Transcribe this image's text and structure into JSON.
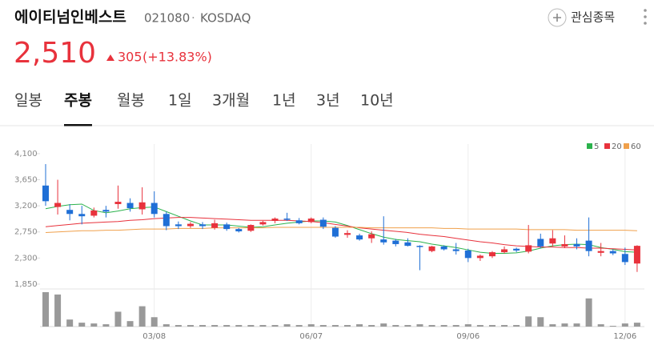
{
  "header": {
    "name": "에이티넘인베스트",
    "code": "021080",
    "separator": "·",
    "market": "KOSDAQ",
    "price": "2,510",
    "change": "305",
    "change_pct": "(+13.83%)",
    "watch_button": "관심종목"
  },
  "tabs": {
    "items": [
      "일봉",
      "주봉",
      "월봉",
      "1일",
      "3개월",
      "1년",
      "3년",
      "10년"
    ],
    "selected": 1
  },
  "chart_data": {
    "type": "candlestick",
    "categories": [
      null,
      null,
      null,
      null,
      null,
      null,
      null,
      null,
      null,
      "03/08",
      null,
      null,
      null,
      null,
      null,
      null,
      null,
      null,
      null,
      null,
      null,
      null,
      "06/07",
      null,
      null,
      null,
      null,
      null,
      null,
      null,
      null,
      null,
      null,
      null,
      null,
      "09/06",
      null,
      null,
      null,
      null,
      null,
      null,
      null,
      null,
      null,
      null,
      null,
      null,
      "12/06",
      null
    ],
    "open": [
      3550,
      3180,
      3130,
      3060,
      3030,
      3130,
      3230,
      3250,
      3140,
      3250,
      3060,
      2880,
      2850,
      2880,
      2820,
      2880,
      2800,
      2770,
      2880,
      2940,
      2980,
      2950,
      2920,
      2960,
      2820,
      2700,
      2690,
      2640,
      2620,
      2600,
      2570,
      2510,
      2420,
      2500,
      2450,
      2430,
      2300,
      2330,
      2400,
      2460,
      2410,
      2630,
      2550,
      2500,
      2540,
      2600,
      2390,
      2420,
      2370,
      2205
    ],
    "high": [
      3920,
      3650,
      3230,
      3200,
      3170,
      3200,
      3550,
      3330,
      3520,
      3450,
      3100,
      2930,
      2920,
      2920,
      2960,
      2910,
      2820,
      2880,
      2940,
      3000,
      3080,
      2990,
      3000,
      3000,
      2850,
      2780,
      2720,
      2760,
      3020,
      2630,
      2640,
      2520,
      2510,
      2520,
      2560,
      2460,
      2360,
      2420,
      2500,
      2480,
      2870,
      2720,
      2780,
      2690,
      2640,
      3000,
      2560,
      2450,
      2480,
      2520
    ],
    "low": [
      3200,
      3050,
      2950,
      2880,
      3000,
      3000,
      3150,
      3100,
      3050,
      3000,
      2780,
      2800,
      2820,
      2800,
      2790,
      2770,
      2740,
      2750,
      2860,
      2900,
      2940,
      2880,
      2900,
      2800,
      2650,
      2650,
      2600,
      2560,
      2530,
      2500,
      2500,
      2090,
      2400,
      2430,
      2360,
      2230,
      2250,
      2300,
      2380,
      2400,
      2380,
      2470,
      2500,
      2470,
      2450,
      2330,
      2330,
      2350,
      2180,
      2060
    ],
    "close": [
      3280,
      3250,
      3060,
      3020,
      3120,
      3100,
      3270,
      3160,
      3260,
      3060,
      2850,
      2850,
      2890,
      2850,
      2900,
      2800,
      2760,
      2870,
      2920,
      2980,
      2960,
      2900,
      2980,
      2840,
      2670,
      2730,
      2620,
      2710,
      2570,
      2540,
      2510,
      2490,
      2500,
      2450,
      2420,
      2300,
      2340,
      2400,
      2450,
      2430,
      2520,
      2500,
      2640,
      2540,
      2500,
      2420,
      2420,
      2380,
      2230,
      2510
    ],
    "volume": [
      44,
      41,
      9,
      5,
      4,
      3,
      19,
      7,
      26,
      12,
      3,
      2,
      2,
      2,
      2,
      2,
      2,
      2,
      2,
      2,
      3,
      2,
      3,
      2,
      2,
      2,
      3,
      2,
      4,
      2,
      2,
      3,
      2,
      2,
      2,
      3,
      2,
      2,
      2,
      2,
      13,
      12,
      3,
      4,
      4,
      36,
      3,
      1,
      4,
      5
    ],
    "volume_ylim": [
      0,
      45
    ],
    "up_color": "#e8323c",
    "down_color": "#1f6fd6",
    "volume_color": "#999999",
    "series": [
      {
        "name": "5",
        "color": "#2bb24c",
        "values": [
          3150,
          3190,
          3220,
          3230,
          3120,
          3080,
          3110,
          3150,
          3170,
          3180,
          3100,
          3020,
          2940,
          2870,
          2870,
          2870,
          2850,
          2830,
          2840,
          2870,
          2900,
          2920,
          2940,
          2940,
          2920,
          2860,
          2790,
          2720,
          2660,
          2620,
          2600,
          2580,
          2540,
          2510,
          2480,
          2440,
          2400,
          2380,
          2380,
          2390,
          2420,
          2470,
          2510,
          2530,
          2540,
          2530,
          2480,
          2450,
          2410,
          2400
        ]
      },
      {
        "name": "20",
        "color": "#e8323c",
        "values": [
          2840,
          2860,
          2880,
          2900,
          2910,
          2920,
          2930,
          2950,
          2960,
          2980,
          2990,
          3000,
          3000,
          2990,
          2980,
          2970,
          2960,
          2950,
          2950,
          2950,
          2950,
          2940,
          2930,
          2910,
          2880,
          2850,
          2820,
          2800,
          2780,
          2760,
          2740,
          2710,
          2690,
          2670,
          2640,
          2610,
          2580,
          2560,
          2530,
          2510,
          2500,
          2490,
          2490,
          2480,
          2480,
          2470,
          2470,
          2460,
          2450,
          2440
        ]
      },
      {
        "name": "60",
        "color": "#f0a04b",
        "values": [
          2740,
          2750,
          2760,
          2770,
          2770,
          2780,
          2780,
          2790,
          2800,
          2800,
          2800,
          2810,
          2810,
          2810,
          2820,
          2820,
          2820,
          2820,
          2820,
          2830,
          2830,
          2830,
          2830,
          2830,
          2830,
          2830,
          2830,
          2820,
          2820,
          2820,
          2820,
          2820,
          2820,
          2810,
          2810,
          2800,
          2800,
          2800,
          2800,
          2800,
          2790,
          2790,
          2790,
          2790,
          2780,
          2780,
          2780,
          2780,
          2780,
          2770
        ]
      }
    ],
    "ylim": [
      1780,
      4265
    ],
    "yticks": [
      {
        "value": 4100,
        "label": "4,100"
      },
      {
        "value": 3650,
        "label": "3,650"
      },
      {
        "value": 3200,
        "label": "3,200"
      },
      {
        "value": 2750,
        "label": "2,750"
      },
      {
        "value": 2300,
        "label": "2,300"
      },
      {
        "value": 1850,
        "label": "1,850"
      }
    ]
  }
}
